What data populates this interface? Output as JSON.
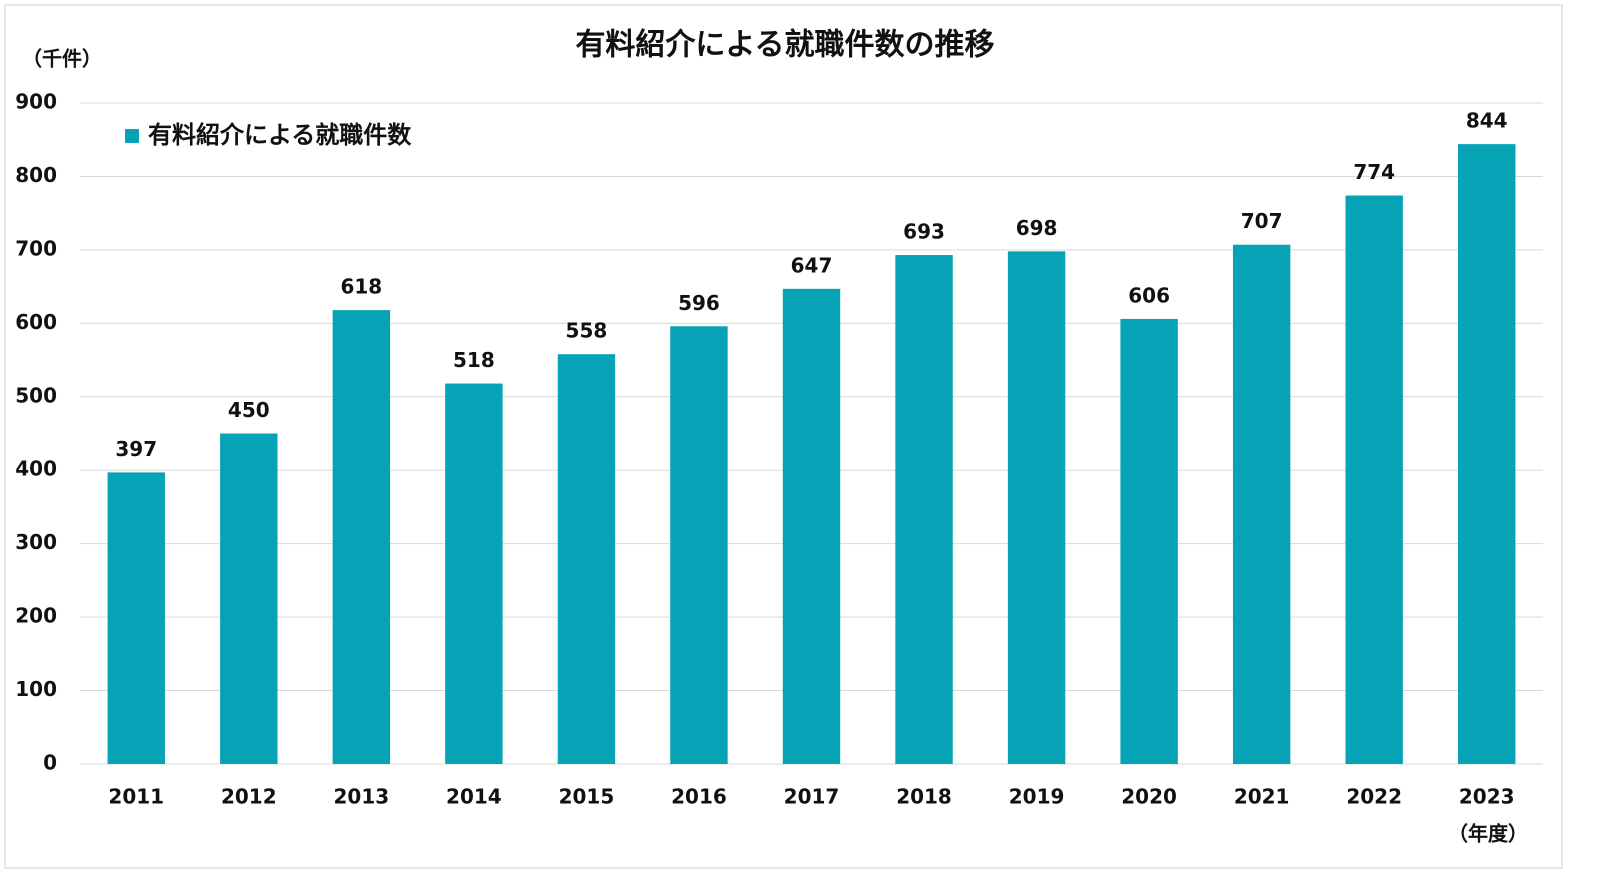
{
  "chart_data": {
    "type": "bar",
    "title": "有料紹介による就職件数の推移",
    "y_label": "（千件）",
    "x_label": "（年度）",
    "categories": [
      "2011",
      "2012",
      "2013",
      "2014",
      "2015",
      "2016",
      "2017",
      "2018",
      "2019",
      "2020",
      "2021",
      "2022",
      "2023"
    ],
    "series": [
      {
        "name": "有料紹介による就職件数",
        "color": "#05a3b5",
        "values": [
          397,
          450,
          618,
          518,
          558,
          596,
          647,
          693,
          698,
          606,
          707,
          774,
          844
        ]
      }
    ],
    "ylim": [
      0,
      900
    ],
    "yticks": [
      0,
      100,
      200,
      300,
      400,
      500,
      600,
      700,
      800,
      900
    ],
    "grid": true,
    "legend": "upper left",
    "data_labels": true
  }
}
